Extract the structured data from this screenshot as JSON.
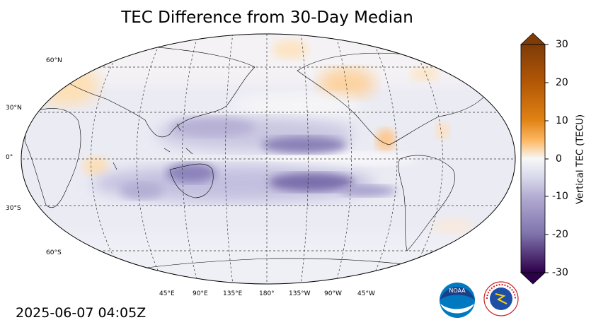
{
  "title": "TEC Difference from 30-Day Median",
  "timestamp": "2025-06-07 04:05Z",
  "map": {
    "projection": "Robinson",
    "central_longitude": 180,
    "lat_labels": [
      "60°N",
      "30°N",
      "0°",
      "30°S",
      "60°S"
    ],
    "lon_labels": [
      "45°E",
      "90°E",
      "135°E",
      "180°",
      "135°W",
      "90°W",
      "45°W"
    ]
  },
  "colorbar": {
    "label": "Vertical TEC (TECU)",
    "ticks": [
      "30",
      "20",
      "10",
      "0",
      "-10",
      "-20",
      "-30"
    ],
    "min": -30,
    "max": 30,
    "extend": "both",
    "colors": {
      "max": "#7f3b08",
      "high": "#e08214",
      "mid_high": "#fdb863",
      "zero": "#f7f7f7",
      "mid_low": "#b2abd2",
      "low": "#8073ac",
      "min": "#2d004b"
    }
  },
  "logos": {
    "noaa": "NOAA",
    "nws": "NATIONAL WEATHER SERVICE"
  }
}
